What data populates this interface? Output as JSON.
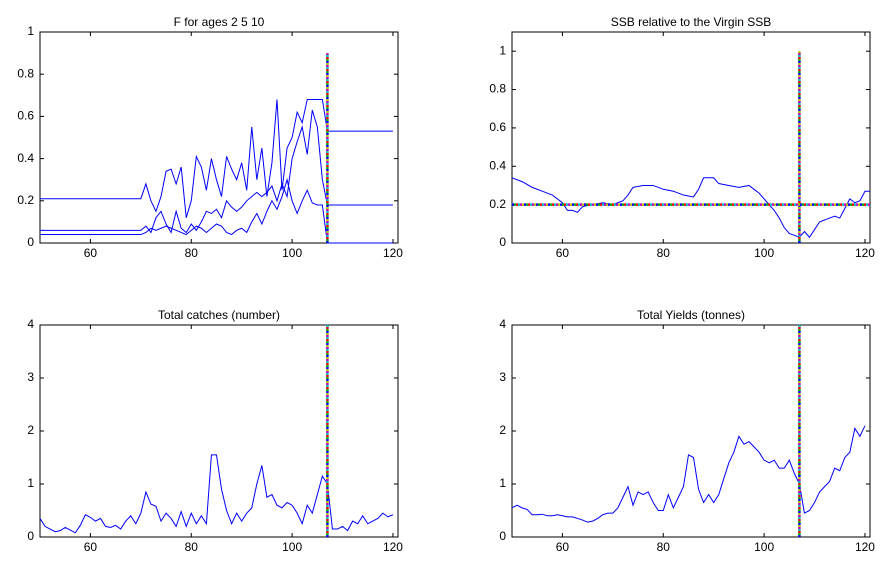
{
  "chart_data": [
    {
      "type": "line",
      "title": "F for ages  2 5 10",
      "xlim": [
        50,
        121
      ],
      "xticks": [
        60,
        80,
        100,
        120
      ],
      "ylim": [
        0,
        1
      ],
      "yticks": [
        0,
        0.2,
        0.4,
        0.6,
        0.8,
        1
      ],
      "series": [
        {
          "color": "#0000ff",
          "x": [
            50,
            70,
            71,
            72,
            73,
            74,
            75,
            76,
            77,
            78,
            79,
            80,
            81,
            82,
            83,
            84,
            85,
            86,
            87,
            88,
            89,
            90,
            91,
            92,
            93,
            94,
            95,
            96,
            97,
            98,
            99,
            100,
            101,
            102,
            103,
            104,
            105,
            106,
            107,
            120
          ],
          "values": [
            0.21,
            0.21,
            0.28,
            0.2,
            0.15,
            0.22,
            0.34,
            0.35,
            0.28,
            0.36,
            0.12,
            0.2,
            0.41,
            0.36,
            0.25,
            0.4,
            0.3,
            0.22,
            0.41,
            0.35,
            0.3,
            0.38,
            0.25,
            0.55,
            0.3,
            0.45,
            0.22,
            0.38,
            0.68,
            0.25,
            0.45,
            0.5,
            0.62,
            0.57,
            0.68,
            0.68,
            0.68,
            0.68,
            0.53,
            0.53
          ]
        },
        {
          "color": "#0000ff",
          "x": [
            50,
            70,
            71,
            72,
            73,
            74,
            75,
            76,
            77,
            78,
            79,
            80,
            81,
            82,
            83,
            84,
            85,
            86,
            87,
            88,
            89,
            90,
            91,
            92,
            93,
            94,
            95,
            96,
            97,
            98,
            99,
            100,
            101,
            102,
            103,
            104,
            105,
            106,
            107,
            120
          ],
          "values": [
            0.06,
            0.06,
            0.08,
            0.05,
            0.12,
            0.15,
            0.09,
            0.05,
            0.15,
            0.07,
            0.05,
            0.09,
            0.06,
            0.1,
            0.15,
            0.14,
            0.16,
            0.12,
            0.2,
            0.17,
            0.15,
            0.17,
            0.2,
            0.22,
            0.24,
            0.22,
            0.24,
            0.27,
            0.2,
            0.28,
            0.22,
            0.4,
            0.48,
            0.55,
            0.42,
            0.63,
            0.55,
            0.3,
            0.18,
            0.18
          ]
        },
        {
          "color": "#0000ff",
          "x": [
            50,
            70,
            71,
            72,
            73,
            74,
            75,
            76,
            77,
            78,
            79,
            80,
            81,
            82,
            83,
            84,
            85,
            86,
            87,
            88,
            89,
            90,
            91,
            92,
            93,
            94,
            95,
            96,
            97,
            98,
            99,
            100,
            101,
            102,
            103,
            104,
            105,
            106,
            107,
            120
          ],
          "values": [
            0.04,
            0.04,
            0.05,
            0.07,
            0.06,
            0.07,
            0.08,
            0.07,
            0.06,
            0.05,
            0.04,
            0.06,
            0.08,
            0.07,
            0.05,
            0.07,
            0.09,
            0.08,
            0.05,
            0.04,
            0.06,
            0.07,
            0.05,
            0.1,
            0.14,
            0.09,
            0.15,
            0.2,
            0.16,
            0.22,
            0.3,
            0.2,
            0.14,
            0.2,
            0.25,
            0.19,
            0.18,
            0.18,
            0,
            0
          ]
        },
        {
          "linestyle": "dotted",
          "colors": [
            "#0000ff",
            "#00aa00",
            "#ff0000",
            "#00bfbf",
            "#bf00bf",
            "#bfbf00"
          ],
          "x": [
            107,
            107
          ],
          "values": [
            0,
            0.9
          ]
        }
      ]
    },
    {
      "type": "line",
      "title": "SSB relative to the Virgin SSB",
      "xlim": [
        50,
        121
      ],
      "xticks": [
        60,
        80,
        100,
        120
      ],
      "ylim": [
        0,
        1.1
      ],
      "yticks": [
        0,
        0.2,
        0.4,
        0.6,
        0.8,
        1
      ],
      "series": [
        {
          "color": "#0000ff",
          "x": [
            50,
            52,
            54,
            56,
            58,
            60,
            61,
            62,
            63,
            64,
            66,
            68,
            70,
            72,
            73,
            74,
            76,
            78,
            80,
            82,
            84,
            86,
            87,
            88,
            90,
            91,
            93,
            95,
            97,
            98,
            99,
            101,
            102,
            103,
            104,
            105,
            106,
            107,
            108,
            109,
            110,
            111,
            113,
            114,
            115,
            116,
            117,
            118,
            119,
            120,
            121
          ],
          "values": [
            0.34,
            0.32,
            0.29,
            0.27,
            0.25,
            0.21,
            0.17,
            0.17,
            0.16,
            0.19,
            0.2,
            0.21,
            0.2,
            0.22,
            0.25,
            0.29,
            0.3,
            0.3,
            0.28,
            0.27,
            0.25,
            0.24,
            0.28,
            0.34,
            0.34,
            0.31,
            0.3,
            0.29,
            0.3,
            0.28,
            0.26,
            0.2,
            0.17,
            0.13,
            0.08,
            0.05,
            0.04,
            0.03,
            0.06,
            0.03,
            0.07,
            0.11,
            0.13,
            0.14,
            0.13,
            0.18,
            0.23,
            0.21,
            0.22,
            0.27,
            0.27
          ]
        },
        {
          "linestyle": "dotted",
          "colors": [
            "#0000ff",
            "#00aa00",
            "#ff0000",
            "#00bfbf",
            "#bf00bf",
            "#bfbf00"
          ],
          "x": [
            107,
            107
          ],
          "values": [
            0,
            1
          ]
        },
        {
          "linestyle": "dotted",
          "colors": [
            "#0000ff",
            "#00aa00",
            "#ff0000",
            "#00bfbf",
            "#bf00bf",
            "#bfbf00"
          ],
          "x": [
            50,
            121
          ],
          "values": [
            0.2,
            0.2
          ]
        }
      ]
    },
    {
      "type": "line",
      "title": "Total catches (number)",
      "xlim": [
        50,
        121
      ],
      "xticks": [
        60,
        80,
        100,
        120
      ],
      "ylim": [
        0,
        4
      ],
      "yticks": [
        0,
        1,
        2,
        3,
        4
      ],
      "series": [
        {
          "color": "#0000ff",
          "x": [
            50,
            51,
            52,
            53,
            54,
            55,
            56,
            57,
            58,
            59,
            60,
            61,
            62,
            63,
            64,
            65,
            66,
            67,
            68,
            69,
            70,
            71,
            72,
            73,
            74,
            75,
            76,
            77,
            78,
            79,
            80,
            81,
            82,
            83,
            84,
            85,
            86,
            87,
            88,
            89,
            90,
            91,
            92,
            93,
            94,
            95,
            96,
            97,
            98,
            99,
            100,
            101,
            102,
            103,
            104,
            105,
            106,
            107,
            108,
            109,
            110,
            111,
            112,
            113,
            114,
            115,
            116,
            117,
            118,
            119,
            120
          ],
          "values": [
            0.35,
            0.2,
            0.15,
            0.1,
            0.12,
            0.18,
            0.13,
            0.08,
            0.22,
            0.42,
            0.37,
            0.3,
            0.35,
            0.2,
            0.18,
            0.22,
            0.15,
            0.3,
            0.4,
            0.25,
            0.45,
            0.85,
            0.62,
            0.58,
            0.3,
            0.45,
            0.35,
            0.2,
            0.48,
            0.2,
            0.45,
            0.25,
            0.4,
            0.25,
            1.55,
            1.55,
            0.9,
            0.5,
            0.25,
            0.45,
            0.3,
            0.45,
            0.55,
            1.0,
            1.35,
            0.75,
            0.8,
            0.6,
            0.55,
            0.65,
            0.6,
            0.45,
            0.25,
            0.6,
            0.45,
            0.8,
            1.15,
            1.0,
            0.15,
            0.15,
            0.2,
            0.12,
            0.3,
            0.25,
            0.4,
            0.25,
            0.3,
            0.35,
            0.45,
            0.38,
            0.42
          ]
        },
        {
          "linestyle": "dotted",
          "colors": [
            "#0000ff",
            "#00aa00",
            "#ff0000",
            "#00bfbf",
            "#bf00bf",
            "#bfbf00"
          ],
          "x": [
            107,
            107
          ],
          "values": [
            0,
            4
          ]
        }
      ]
    },
    {
      "type": "line",
      "title": "Total Yields (tonnes)",
      "xlim": [
        50,
        121
      ],
      "xticks": [
        60,
        80,
        100,
        120
      ],
      "ylim": [
        0,
        4
      ],
      "yticks": [
        0,
        1,
        2,
        3,
        4
      ],
      "series": [
        {
          "color": "#0000ff",
          "x": [
            50,
            51,
            52,
            53,
            54,
            55,
            56,
            57,
            58,
            59,
            60,
            61,
            62,
            63,
            64,
            65,
            66,
            67,
            68,
            69,
            70,
            71,
            72,
            73,
            74,
            75,
            76,
            77,
            78,
            79,
            80,
            81,
            82,
            83,
            84,
            85,
            86,
            87,
            88,
            89,
            90,
            91,
            92,
            93,
            94,
            95,
            96,
            97,
            98,
            99,
            100,
            101,
            102,
            103,
            104,
            105,
            106,
            107,
            108,
            109,
            110,
            111,
            112,
            113,
            114,
            115,
            116,
            117,
            118,
            119,
            120
          ],
          "values": [
            0.55,
            0.6,
            0.55,
            0.52,
            0.42,
            0.42,
            0.43,
            0.4,
            0.4,
            0.42,
            0.4,
            0.38,
            0.38,
            0.35,
            0.32,
            0.28,
            0.3,
            0.35,
            0.42,
            0.45,
            0.45,
            0.55,
            0.75,
            0.95,
            0.6,
            0.85,
            0.8,
            0.85,
            0.65,
            0.5,
            0.5,
            0.8,
            0.55,
            0.75,
            0.95,
            1.55,
            1.5,
            0.9,
            0.65,
            0.8,
            0.65,
            0.8,
            1.1,
            1.4,
            1.6,
            1.9,
            1.75,
            1.8,
            1.7,
            1.6,
            1.45,
            1.4,
            1.45,
            1.3,
            1.3,
            1.45,
            1.2,
            1.0,
            0.45,
            0.5,
            0.65,
            0.85,
            0.95,
            1.05,
            1.3,
            1.25,
            1.5,
            1.6,
            2.05,
            1.9,
            2.1
          ]
        },
        {
          "linestyle": "dotted",
          "colors": [
            "#0000ff",
            "#00aa00",
            "#ff0000",
            "#00bfbf",
            "#bf00bf",
            "#bfbf00"
          ],
          "x": [
            107,
            107
          ],
          "values": [
            0,
            4
          ]
        }
      ]
    }
  ]
}
